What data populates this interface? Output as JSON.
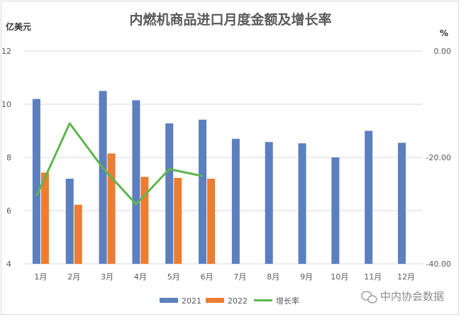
{
  "chart_data": {
    "type": "bar",
    "title": "内燃机商品进口月度金额及增长率",
    "y_left_label": "亿美元",
    "y_right_label": "%",
    "categories": [
      "1月",
      "2月",
      "3月",
      "4月",
      "5月",
      "6月",
      "7月",
      "8月",
      "9月",
      "10月",
      "11月",
      "12月"
    ],
    "y_left_range": [
      4,
      12
    ],
    "y_left_ticks": [
      "4",
      "6",
      "8",
      "10",
      "12"
    ],
    "y_right_range": [
      -40,
      0
    ],
    "y_right_ticks": [
      "0.00",
      "-20.00",
      "-40.00"
    ],
    "series": [
      {
        "name": "2021",
        "kind": "bar",
        "axis": "left",
        "color": "#5b7fbf",
        "values": [
          10.2,
          7.2,
          10.5,
          10.15,
          9.28,
          9.42,
          8.7,
          8.58,
          8.53,
          8.0,
          9.0,
          8.55
        ]
      },
      {
        "name": "2022",
        "kind": "bar",
        "axis": "left",
        "color": "#ed7d31",
        "values": [
          7.43,
          6.22,
          8.15,
          7.27,
          7.23,
          7.2,
          null,
          null,
          null,
          null,
          null,
          null
        ]
      },
      {
        "name": "增长率",
        "kind": "line",
        "axis": "right",
        "color": "#5eb54e",
        "values": [
          -27.3,
          -13.6,
          -22.0,
          -28.8,
          -22.2,
          -23.5,
          null,
          null,
          null,
          null,
          null,
          null
        ]
      }
    ],
    "legend_position": "bottom",
    "grid": "horizontal"
  },
  "watermark": "中内协会数据"
}
